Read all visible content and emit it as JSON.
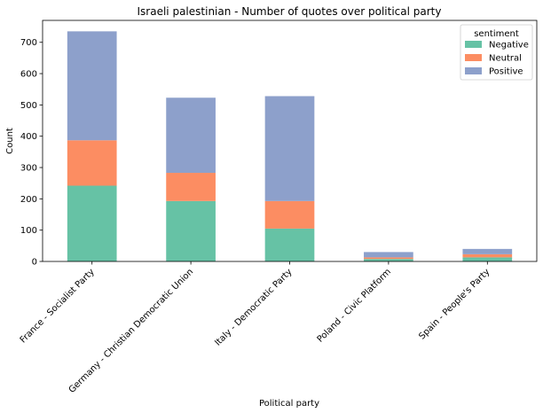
{
  "chart_data": {
    "type": "bar",
    "stacked": true,
    "title": "Israeli palestinian - Number of quotes over political party",
    "xlabel": "Political party",
    "ylabel": "Count",
    "ylim": [
      0,
      770
    ],
    "yticks": [
      0,
      100,
      200,
      300,
      400,
      500,
      600,
      700
    ],
    "categories": [
      "France - Socialist Party",
      "Germany - Christian Democratic Union",
      "Italy - Democratic Party",
      "Poland - Civic Platform",
      "Spain - People's Party"
    ],
    "series": [
      {
        "name": "Negative",
        "color": "#66c2a5",
        "values": [
          242,
          193,
          105,
          8,
          13
        ]
      },
      {
        "name": "Neutral",
        "color": "#fc8d62",
        "values": [
          145,
          90,
          88,
          5,
          10
        ]
      },
      {
        "name": "Positive",
        "color": "#8da0cb",
        "values": [
          348,
          240,
          335,
          17,
          17
        ]
      }
    ],
    "legend": {
      "title": "sentiment",
      "placement": "top-right"
    },
    "grid": false
  }
}
